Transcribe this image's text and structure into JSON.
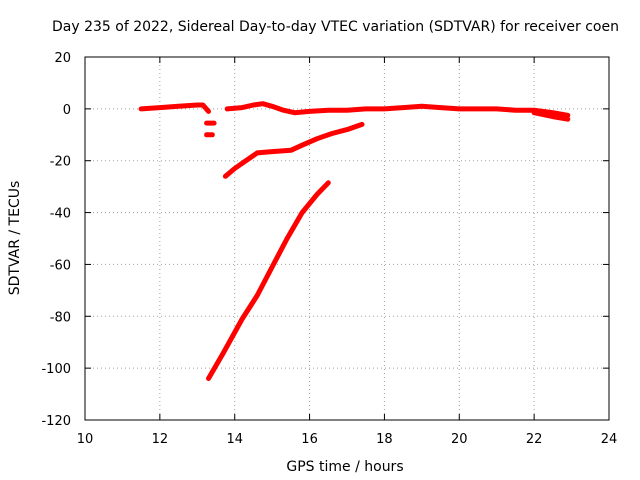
{
  "chart_data": {
    "type": "line",
    "title": "Day 235 of 2022, Sidereal Day-to-day VTEC variation (SDTVAR) for receiver coen",
    "xlabel": "GPS time / hours",
    "ylabel": "SDTVAR / TECUs",
    "xlim": [
      10,
      24
    ],
    "ylim": [
      -120,
      20
    ],
    "grid": true,
    "legend": "none",
    "xticks": [
      10,
      12,
      14,
      16,
      18,
      20,
      22,
      24
    ],
    "yticks": [
      20,
      0,
      -20,
      -40,
      -60,
      -80,
      -100,
      -120
    ],
    "xtick_labels": [
      "10",
      "12",
      "14",
      "16",
      "18",
      "20",
      "22",
      "24"
    ],
    "ytick_labels": [
      "20",
      "0",
      "-20",
      "-40",
      "-60",
      "-80",
      "-100",
      "-120"
    ],
    "color": "#ff0000",
    "series": [
      {
        "name": "track-1",
        "x": [
          11.5,
          12.0,
          12.5,
          13.0,
          13.15,
          13.3
        ],
        "y": [
          0,
          0.5,
          1,
          1.5,
          1.5,
          -1
        ]
      },
      {
        "name": "track-2",
        "x": [
          13.25,
          13.45
        ],
        "y": [
          -5.5,
          -5.5
        ]
      },
      {
        "name": "track-3",
        "x": [
          13.25,
          13.4
        ],
        "y": [
          -10,
          -10
        ]
      },
      {
        "name": "track-4",
        "x": [
          13.8,
          14.2,
          14.5,
          14.75,
          15.0,
          15.3,
          15.6,
          16.0,
          16.5,
          17.0,
          17.5,
          18.0,
          18.5,
          19.0,
          19.5,
          20.0,
          20.5,
          21.0,
          21.5,
          22.0,
          22.5,
          22.9
        ],
        "y": [
          0,
          0.5,
          1.5,
          2,
          1,
          -0.5,
          -1.5,
          -1,
          -0.5,
          -0.5,
          0,
          0,
          0.5,
          1,
          0.5,
          0,
          0,
          0,
          -0.5,
          -0.5,
          -1.5,
          -2.5
        ]
      },
      {
        "name": "track-5",
        "x": [
          22.0,
          22.5,
          22.9
        ],
        "y": [
          -1.5,
          -3,
          -4
        ]
      },
      {
        "name": "track-6",
        "x": [
          13.75,
          14.0,
          14.3,
          14.6,
          15.0,
          15.5,
          15.8,
          16.2,
          16.6,
          17.0,
          17.4
        ],
        "y": [
          -26,
          -23,
          -20,
          -17,
          -16.5,
          -16,
          -14,
          -11.5,
          -9.5,
          -8,
          -6
        ]
      },
      {
        "name": "track-7",
        "x": [
          13.3,
          13.7,
          14.2,
          14.6,
          15.0,
          15.4,
          15.8,
          16.2,
          16.5
        ],
        "y": [
          -104,
          -94,
          -81,
          -72,
          -61,
          -50,
          -40,
          -33,
          -28.5
        ]
      }
    ]
  }
}
